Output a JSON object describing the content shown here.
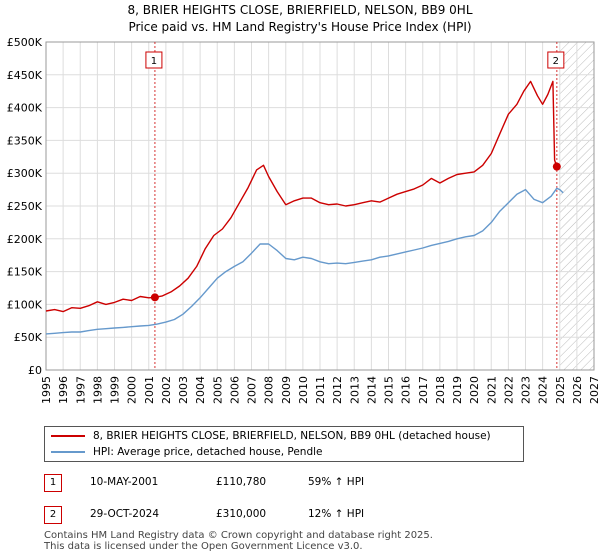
{
  "chart_data": {
    "type": "line",
    "title": "8, BRIER HEIGHTS CLOSE, BRIERFIELD, NELSON, BB9 0HL",
    "subtitle": "Price paid vs. HM Land Registry's House Price Index (HPI)",
    "xlabel": "",
    "ylabel": "",
    "xlim": [
      1995,
      2027
    ],
    "ylim": [
      0,
      500000
    ],
    "grid": true,
    "y_ticks": [
      {
        "value": 0,
        "label": "£0"
      },
      {
        "value": 50000,
        "label": "£50K"
      },
      {
        "value": 100000,
        "label": "£100K"
      },
      {
        "value": 150000,
        "label": "£150K"
      },
      {
        "value": 200000,
        "label": "£200K"
      },
      {
        "value": 250000,
        "label": "£250K"
      },
      {
        "value": 300000,
        "label": "£300K"
      },
      {
        "value": 350000,
        "label": "£350K"
      },
      {
        "value": 400000,
        "label": "£400K"
      },
      {
        "value": 450000,
        "label": "£450K"
      },
      {
        "value": 500000,
        "label": "£500K"
      }
    ],
    "x_ticks": [
      "1995",
      "1996",
      "1997",
      "1998",
      "1999",
      "2000",
      "2001",
      "2002",
      "2003",
      "2004",
      "2005",
      "2006",
      "2007",
      "2008",
      "2009",
      "2010",
      "2011",
      "2012",
      "2013",
      "2014",
      "2015",
      "2016",
      "2017",
      "2018",
      "2019",
      "2020",
      "2021",
      "2022",
      "2023",
      "2024",
      "2025",
      "2026",
      "2027"
    ],
    "series": [
      {
        "name": "8, BRIER HEIGHTS CLOSE, BRIERFIELD, NELSON, BB9 0HL (detached house)",
        "color": "#cc0000",
        "x": [
          1995.0,
          1995.5,
          1996.0,
          1996.5,
          1997.0,
          1997.5,
          1998.0,
          1998.5,
          1999.0,
          1999.5,
          2000.0,
          2000.5,
          2001.0,
          2001.36,
          2001.8,
          2002.3,
          2002.8,
          2003.3,
          2003.8,
          2004.3,
          2004.8,
          2005.3,
          2005.8,
          2006.3,
          2006.8,
          2007.3,
          2007.7,
          2008.0,
          2008.5,
          2009.0,
          2009.5,
          2010.0,
          2010.5,
          2011.0,
          2011.5,
          2012.0,
          2012.5,
          2013.0,
          2013.5,
          2014.0,
          2014.5,
          2015.0,
          2015.5,
          2016.0,
          2016.5,
          2017.0,
          2017.5,
          2018.0,
          2018.5,
          2019.0,
          2019.5,
          2020.0,
          2020.5,
          2021.0,
          2021.5,
          2022.0,
          2022.5,
          2022.9,
          2023.3,
          2023.7,
          2024.0,
          2024.3,
          2024.6,
          2024.7,
          2024.83
        ],
        "values": [
          90000,
          92000,
          89000,
          95000,
          94000,
          98000,
          104000,
          100000,
          103000,
          108000,
          106000,
          112000,
          110000,
          110780,
          113000,
          119000,
          128000,
          140000,
          158000,
          185000,
          205000,
          215000,
          232000,
          255000,
          278000,
          305000,
          312000,
          295000,
          272000,
          252000,
          258000,
          262000,
          262000,
          255000,
          252000,
          253000,
          250000,
          252000,
          255000,
          258000,
          256000,
          262000,
          268000,
          272000,
          276000,
          282000,
          292000,
          285000,
          292000,
          298000,
          300000,
          302000,
          312000,
          330000,
          360000,
          390000,
          405000,
          425000,
          440000,
          418000,
          405000,
          420000,
          440000,
          320000,
          310000
        ]
      },
      {
        "name": "HPI: Average price, detached house, Pendle",
        "color": "#6699cc",
        "x": [
          1995.0,
          1995.5,
          1996.0,
          1996.5,
          1997.0,
          1997.5,
          1998.0,
          1998.5,
          1999.0,
          1999.5,
          2000.0,
          2000.5,
          2001.0,
          2001.5,
          2002.0,
          2002.5,
          2003.0,
          2003.5,
          2004.0,
          2004.5,
          2005.0,
          2005.5,
          2006.0,
          2006.5,
          2007.0,
          2007.5,
          2008.0,
          2008.5,
          2009.0,
          2009.5,
          2010.0,
          2010.5,
          2011.0,
          2011.5,
          2012.0,
          2012.5,
          2013.0,
          2013.5,
          2014.0,
          2014.5,
          2015.0,
          2015.5,
          2016.0,
          2016.5,
          2017.0,
          2017.5,
          2018.0,
          2018.5,
          2019.0,
          2019.5,
          2020.0,
          2020.5,
          2021.0,
          2021.5,
          2022.0,
          2022.5,
          2023.0,
          2023.5,
          2024.0,
          2024.5,
          2024.83,
          2025.0,
          2025.2
        ],
        "values": [
          55000,
          56000,
          57000,
          58000,
          58000,
          60000,
          62000,
          63000,
          64000,
          65000,
          66000,
          67000,
          68000,
          70000,
          73000,
          77000,
          85000,
          97000,
          110000,
          125000,
          140000,
          150000,
          158000,
          165000,
          178000,
          192000,
          192000,
          182000,
          170000,
          168000,
          172000,
          170000,
          165000,
          162000,
          163000,
          162000,
          164000,
          166000,
          168000,
          172000,
          174000,
          177000,
          180000,
          183000,
          186000,
          190000,
          193000,
          196000,
          200000,
          203000,
          205000,
          212000,
          225000,
          242000,
          255000,
          268000,
          275000,
          260000,
          255000,
          265000,
          277000,
          275000,
          270000
        ]
      }
    ],
    "sale_markers": [
      {
        "label": "1",
        "x": 2001.36,
        "value": 110780
      },
      {
        "label": "2",
        "x": 2024.83,
        "value": 310000
      }
    ],
    "legend_position": "bottom"
  },
  "legend": {
    "items": [
      {
        "label": "8, BRIER HEIGHTS CLOSE, BRIERFIELD, NELSON, BB9 0HL (detached house)",
        "color": "#cc0000"
      },
      {
        "label": "HPI: Average price, detached house, Pendle",
        "color": "#6699cc"
      }
    ]
  },
  "sales": [
    {
      "num": "1",
      "date": "10-MAY-2001",
      "price": "£110,780",
      "hpi": "59% ↑ HPI"
    },
    {
      "num": "2",
      "date": "29-OCT-2024",
      "price": "£310,000",
      "hpi": "12% ↑ HPI"
    }
  ],
  "footer": {
    "line1": "Contains HM Land Registry data © Crown copyright and database right 2025.",
    "line2": "This data is licensed under the Open Government Licence v3.0."
  }
}
